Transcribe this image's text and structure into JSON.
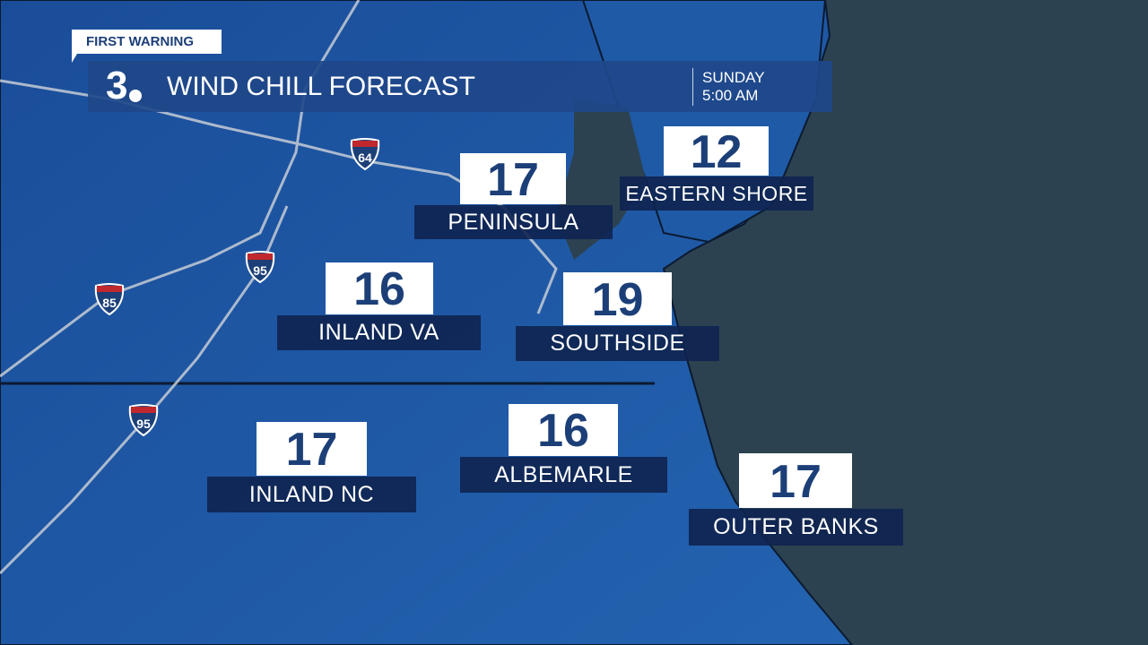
{
  "header": {
    "tag": "FIRST WARNING",
    "logo": "3",
    "title": "WIND CHILL FORECAST",
    "day": "SUNDAY",
    "time": "5:00 AM"
  },
  "colors": {
    "land": "#1f5aa6",
    "ocean": "#2c4250",
    "header": "#20488a",
    "label_bg": "#0e2450",
    "number_text": "#1c3f78"
  },
  "regions": [
    {
      "name": "PENINSULA",
      "value": "17"
    },
    {
      "name": "EASTERN SHORE",
      "value": "12"
    },
    {
      "name": "INLAND VA",
      "value": "16"
    },
    {
      "name": "SOUTHSIDE",
      "value": "19"
    },
    {
      "name": "INLAND NC",
      "value": "17"
    },
    {
      "name": "ALBEMARLE",
      "value": "16"
    },
    {
      "name": "OUTER BANKS",
      "value": "17"
    }
  ],
  "interstates": [
    "64",
    "95",
    "85",
    "95"
  ]
}
